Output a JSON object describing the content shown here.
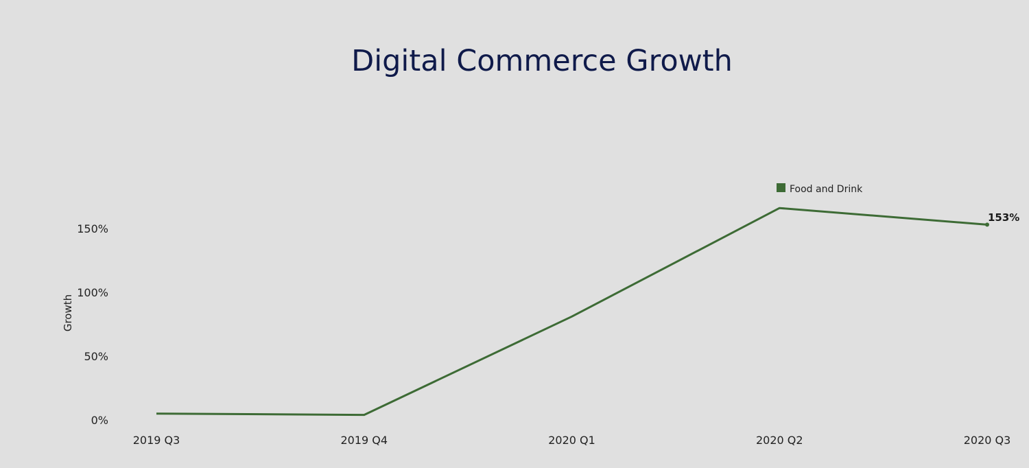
{
  "chart_data": {
    "type": "line",
    "title": "Digital Commerce Growth",
    "xlabel": "",
    "ylabel": "Growth",
    "categories": [
      "2019 Q3",
      "2019 Q4",
      "2020 Q1",
      "2020 Q2",
      "2020 Q3"
    ],
    "series": [
      {
        "name": "Food and Drink",
        "values": [
          5,
          4,
          81,
          166,
          153
        ],
        "color": "#3d6b35"
      }
    ],
    "yticks": [
      0,
      50,
      100,
      150
    ],
    "ytick_labels": [
      "0%",
      "50%",
      "100%",
      "150%"
    ],
    "ylim": [
      0,
      200
    ],
    "grid": false,
    "legend_position": "top-right",
    "end_label": "153%"
  }
}
